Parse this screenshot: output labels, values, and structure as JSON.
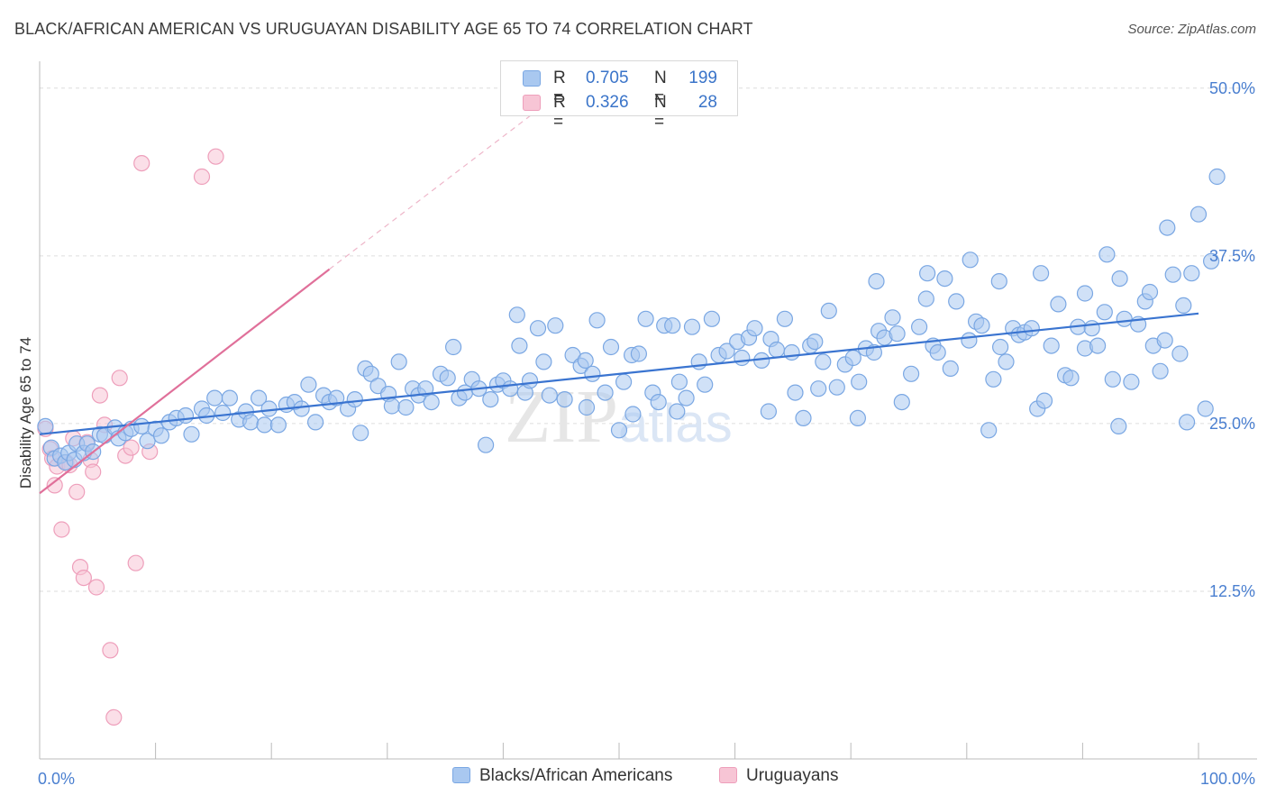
{
  "title": "BLACK/AFRICAN AMERICAN VS URUGUAYAN DISABILITY AGE 65 TO 74 CORRELATION CHART",
  "source": "Source: ZipAtlas.com",
  "watermark": "ZIPatlas",
  "colors": {
    "blue_fill": "#a9c8f0",
    "blue_stroke": "#7aa7e3",
    "blue_line": "#3a74d0",
    "pink_fill": "#f7c5d5",
    "pink_stroke": "#ee9fbb",
    "pink_line": "#e0709a",
    "tick_text": "#4a7fd0",
    "grid": "#dddddd"
  },
  "legend": {
    "rows": [
      {
        "r_label": "R =",
        "r_value": "0.705",
        "n_label": "N =",
        "n_value": "199",
        "color": "#a9c8f0",
        "stroke": "#7aa7e3"
      },
      {
        "r_label": "R =",
        "r_value": "0.326",
        "n_label": "N =",
        "n_value": "28",
        "color": "#f7c5d5",
        "stroke": "#ee9fbb"
      }
    ]
  },
  "bottom_legend": [
    {
      "label": "Blacks/African Americans",
      "color": "#a9c8f0",
      "stroke": "#7aa7e3"
    },
    {
      "label": "Uruguayans",
      "color": "#f7c5d5",
      "stroke": "#ee9fbb"
    }
  ],
  "chart_data": {
    "type": "scatter",
    "title": "BLACK/AFRICAN AMERICAN VS URUGUAYAN DISABILITY AGE 65 TO 74 CORRELATION CHART",
    "xlabel": "",
    "ylabel": "Disability Age 65 to 74",
    "xlim": [
      0,
      100
    ],
    "ylim": [
      0,
      52
    ],
    "x_tick_labels": {
      "left": "0.0%",
      "right": "100.0%"
    },
    "y_ticks": [
      {
        "value": 12.5,
        "label": "12.5%"
      },
      {
        "value": 25.0,
        "label": "25.0%"
      },
      {
        "value": 37.5,
        "label": "37.5%"
      },
      {
        "value": 50.0,
        "label": "50.0%"
      }
    ],
    "series": [
      {
        "name": "Blacks/African Americans",
        "R": 0.705,
        "N": 199,
        "trend": {
          "x0": 0,
          "y0": 24.2,
          "x1": 100,
          "y1": 33.2
        },
        "points": [
          [
            0.5,
            24.8
          ],
          [
            1,
            23.2
          ],
          [
            1.3,
            22.4
          ],
          [
            1.8,
            22.6
          ],
          [
            2.2,
            22.1
          ],
          [
            2.5,
            22.8
          ],
          [
            3,
            22.3
          ],
          [
            3.2,
            23.5
          ],
          [
            3.8,
            22.8
          ],
          [
            4.1,
            23.5
          ],
          [
            4.6,
            22.9
          ],
          [
            5.2,
            24.2
          ],
          [
            5.6,
            24.1
          ],
          [
            6.5,
            24.7
          ],
          [
            6.8,
            23.9
          ],
          [
            7.4,
            24.3
          ],
          [
            7.9,
            24.6
          ],
          [
            8.8,
            24.8
          ],
          [
            9.3,
            23.7
          ],
          [
            10,
            24.6
          ],
          [
            10.5,
            24.1
          ],
          [
            11.2,
            25.1
          ],
          [
            11.8,
            25.4
          ],
          [
            12.6,
            25.6
          ],
          [
            13.1,
            24.2
          ],
          [
            14,
            26.1
          ],
          [
            14.4,
            25.6
          ],
          [
            15.1,
            26.9
          ],
          [
            15.8,
            25.8
          ],
          [
            16.4,
            26.9
          ],
          [
            17.2,
            25.3
          ],
          [
            17.8,
            25.9
          ],
          [
            18.2,
            25.1
          ],
          [
            18.9,
            26.9
          ],
          [
            19.4,
            24.9
          ],
          [
            19.8,
            26.1
          ],
          [
            20.6,
            24.9
          ],
          [
            21.3,
            26.4
          ],
          [
            22,
            26.6
          ],
          [
            22.6,
            26.1
          ],
          [
            23.2,
            27.9
          ],
          [
            23.8,
            25.1
          ],
          [
            24.5,
            27.1
          ],
          [
            25,
            26.6
          ],
          [
            25.6,
            26.9
          ],
          [
            26.6,
            26.1
          ],
          [
            27.2,
            26.8
          ],
          [
            27.7,
            24.3
          ],
          [
            28.1,
            29.1
          ],
          [
            28.6,
            28.7
          ],
          [
            29.2,
            27.8
          ],
          [
            30.1,
            27.2
          ],
          [
            30.4,
            26.3
          ],
          [
            31,
            29.6
          ],
          [
            31.6,
            26.2
          ],
          [
            32.2,
            27.6
          ],
          [
            32.7,
            27.1
          ],
          [
            33.3,
            27.6
          ],
          [
            33.8,
            26.6
          ],
          [
            34.6,
            28.7
          ],
          [
            35.2,
            28.4
          ],
          [
            35.7,
            30.7
          ],
          [
            36.2,
            26.9
          ],
          [
            36.7,
            27.3
          ],
          [
            37.3,
            28.3
          ],
          [
            37.9,
            27.6
          ],
          [
            38.5,
            23.4
          ],
          [
            38.9,
            26.8
          ],
          [
            39.5,
            27.9
          ],
          [
            40,
            28.2
          ],
          [
            40.6,
            27.6
          ],
          [
            41.4,
            30.8
          ],
          [
            41.9,
            27.3
          ],
          [
            42.3,
            28.2
          ],
          [
            43,
            32.1
          ],
          [
            43.5,
            29.6
          ],
          [
            44,
            27.1
          ],
          [
            44.5,
            32.3
          ],
          [
            45.3,
            26.8
          ],
          [
            46,
            30.1
          ],
          [
            46.7,
            29.3
          ],
          [
            47.2,
            26.2
          ],
          [
            47.7,
            28.7
          ],
          [
            48.1,
            32.7
          ],
          [
            48.8,
            27.3
          ],
          [
            49.3,
            30.7
          ],
          [
            50,
            24.5
          ],
          [
            50.4,
            28.1
          ],
          [
            51.1,
            30.1
          ],
          [
            51.7,
            30.2
          ],
          [
            52.3,
            32.8
          ],
          [
            52.9,
            27.3
          ],
          [
            53.4,
            26.6
          ],
          [
            53.9,
            32.3
          ],
          [
            54.6,
            32.3
          ],
          [
            55,
            25.9
          ],
          [
            55.8,
            26.9
          ],
          [
            56.3,
            32.2
          ],
          [
            56.9,
            29.6
          ],
          [
            57.4,
            27.9
          ],
          [
            58,
            32.8
          ],
          [
            58.6,
            30.1
          ],
          [
            59.3,
            30.4
          ],
          [
            60.2,
            31.1
          ],
          [
            60.6,
            29.9
          ],
          [
            61.2,
            31.4
          ],
          [
            61.7,
            32.1
          ],
          [
            62.3,
            29.7
          ],
          [
            63.1,
            31.3
          ],
          [
            63.6,
            30.5
          ],
          [
            64.3,
            32.8
          ],
          [
            64.9,
            30.3
          ],
          [
            65.2,
            27.3
          ],
          [
            65.9,
            25.4
          ],
          [
            66.5,
            30.8
          ],
          [
            67.2,
            27.6
          ],
          [
            67.6,
            29.6
          ],
          [
            68.1,
            33.4
          ],
          [
            68.8,
            27.7
          ],
          [
            69.5,
            29.4
          ],
          [
            70.2,
            29.9
          ],
          [
            70.6,
            25.4
          ],
          [
            71.3,
            30.6
          ],
          [
            72,
            30.3
          ],
          [
            72.4,
            31.9
          ],
          [
            72.9,
            31.4
          ],
          [
            73.6,
            32.9
          ],
          [
            74.4,
            26.6
          ],
          [
            75.2,
            28.7
          ],
          [
            75.9,
            32.2
          ],
          [
            76.5,
            34.3
          ],
          [
            77.1,
            30.8
          ],
          [
            77.5,
            30.3
          ],
          [
            78.1,
            35.8
          ],
          [
            78.6,
            29.1
          ],
          [
            79.1,
            34.1
          ],
          [
            80.2,
            31.2
          ],
          [
            80.8,
            32.6
          ],
          [
            81.3,
            32.3
          ],
          [
            81.9,
            24.5
          ],
          [
            82.3,
            28.3
          ],
          [
            82.9,
            30.7
          ],
          [
            83.4,
            29.6
          ],
          [
            84,
            32.1
          ],
          [
            84.5,
            31.6
          ],
          [
            85,
            31.8
          ],
          [
            85.6,
            32.1
          ],
          [
            86.1,
            26.1
          ],
          [
            86.7,
            26.7
          ],
          [
            87.3,
            30.8
          ],
          [
            87.9,
            33.9
          ],
          [
            88.5,
            28.6
          ],
          [
            89,
            28.4
          ],
          [
            89.6,
            32.2
          ],
          [
            90.2,
            30.6
          ],
          [
            90.8,
            32.1
          ],
          [
            91.3,
            30.8
          ],
          [
            91.9,
            33.3
          ],
          [
            92.6,
            28.3
          ],
          [
            93.1,
            24.8
          ],
          [
            93.6,
            32.8
          ],
          [
            94.2,
            28.1
          ],
          [
            94.8,
            32.4
          ],
          [
            95.4,
            34.1
          ],
          [
            96.1,
            30.8
          ],
          [
            96.7,
            28.9
          ],
          [
            97.3,
            39.6
          ],
          [
            97.8,
            36.1
          ],
          [
            98.4,
            30.2
          ],
          [
            99,
            25.1
          ],
          [
            99.4,
            36.2
          ],
          [
            100,
            40.6
          ],
          [
            100.6,
            26.1
          ],
          [
            101.1,
            37.1
          ],
          [
            101.6,
            43.4
          ],
          [
            72.2,
            35.6
          ],
          [
            76.6,
            36.2
          ],
          [
            80.3,
            37.2
          ],
          [
            82.8,
            35.6
          ],
          [
            86.4,
            36.2
          ],
          [
            90.2,
            34.7
          ],
          [
            92.1,
            37.6
          ],
          [
            93.2,
            35.8
          ],
          [
            95.8,
            34.8
          ],
          [
            97.1,
            31.2
          ],
          [
            98.7,
            33.8
          ],
          [
            74,
            31.7
          ],
          [
            70.7,
            28.1
          ],
          [
            66.9,
            31.1
          ],
          [
            62.9,
            25.9
          ],
          [
            55.2,
            28.1
          ],
          [
            51.2,
            25.7
          ],
          [
            47.1,
            29.7
          ],
          [
            41.2,
            33.1
          ]
        ]
      },
      {
        "name": "Uruguayans",
        "R": 0.326,
        "N": 28,
        "trend": {
          "x0": 0,
          "y0": 19.8,
          "x1": 25,
          "y1": 36.5,
          "dash_x1": 45,
          "dash_y1": 49.7
        },
        "points": [
          [
            0.5,
            24.6
          ],
          [
            0.9,
            23.1
          ],
          [
            1.1,
            22.4
          ],
          [
            1.3,
            20.4
          ],
          [
            1.5,
            21.8
          ],
          [
            1.9,
            17.1
          ],
          [
            2.3,
            22.1
          ],
          [
            2.6,
            21.9
          ],
          [
            2.9,
            23.9
          ],
          [
            3.2,
            19.9
          ],
          [
            3.5,
            14.3
          ],
          [
            3.8,
            13.5
          ],
          [
            4.1,
            23.6
          ],
          [
            4.4,
            22.3
          ],
          [
            4.6,
            21.4
          ],
          [
            4.9,
            12.8
          ],
          [
            5.2,
            27.1
          ],
          [
            5.6,
            24.9
          ],
          [
            6.1,
            8.1
          ],
          [
            6.4,
            3.1
          ],
          [
            6.9,
            28.4
          ],
          [
            7.4,
            22.6
          ],
          [
            7.9,
            23.2
          ],
          [
            8.3,
            14.6
          ],
          [
            8.8,
            44.4
          ],
          [
            9.5,
            22.9
          ],
          [
            14,
            43.4
          ],
          [
            15.2,
            44.9
          ]
        ]
      }
    ]
  }
}
